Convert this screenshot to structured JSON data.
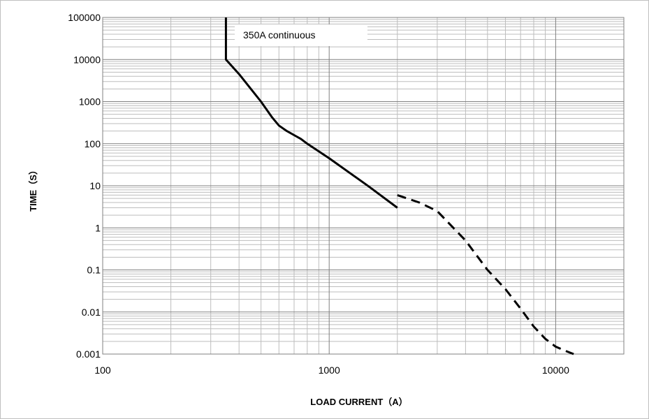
{
  "chart_data": {
    "type": "line",
    "title": "",
    "xlabel": "LOAD CURRENT（A）",
    "ylabel": "TIME（S）",
    "x_scale": "log",
    "y_scale": "log",
    "xlim": [
      100,
      20000
    ],
    "ylim": [
      0.001,
      100000
    ],
    "x_tick_labels": [
      "100",
      "1000",
      "10000"
    ],
    "y_tick_labels": [
      "0.001",
      "0.01",
      "0.1",
      "1",
      "10",
      "100",
      "1000",
      "10000",
      "100000"
    ],
    "grid": true,
    "annotation": "350A continuous",
    "series": [
      {
        "style": "solid",
        "x": [
          350,
          350,
          400,
          500,
          560,
          600,
          650,
          700,
          750,
          800,
          1000,
          1500,
          2000
        ],
        "y": [
          100000,
          10000,
          4500,
          1000,
          420,
          270,
          200,
          160,
          130,
          100,
          45,
          9.5,
          3
        ]
      },
      {
        "style": "dashed",
        "x": [
          2000,
          2500,
          3000,
          4000,
          5000,
          6000,
          7000,
          8000,
          9000,
          10000,
          11000,
          12000
        ],
        "y": [
          6,
          4,
          2.5,
          0.5,
          0.1,
          0.035,
          0.012,
          0.0045,
          0.0023,
          0.0015,
          0.0012,
          0.001
        ]
      }
    ],
    "colors": {
      "line": "#000000",
      "grid_major": "#808080",
      "grid_minor": "#bdbdbd"
    }
  }
}
